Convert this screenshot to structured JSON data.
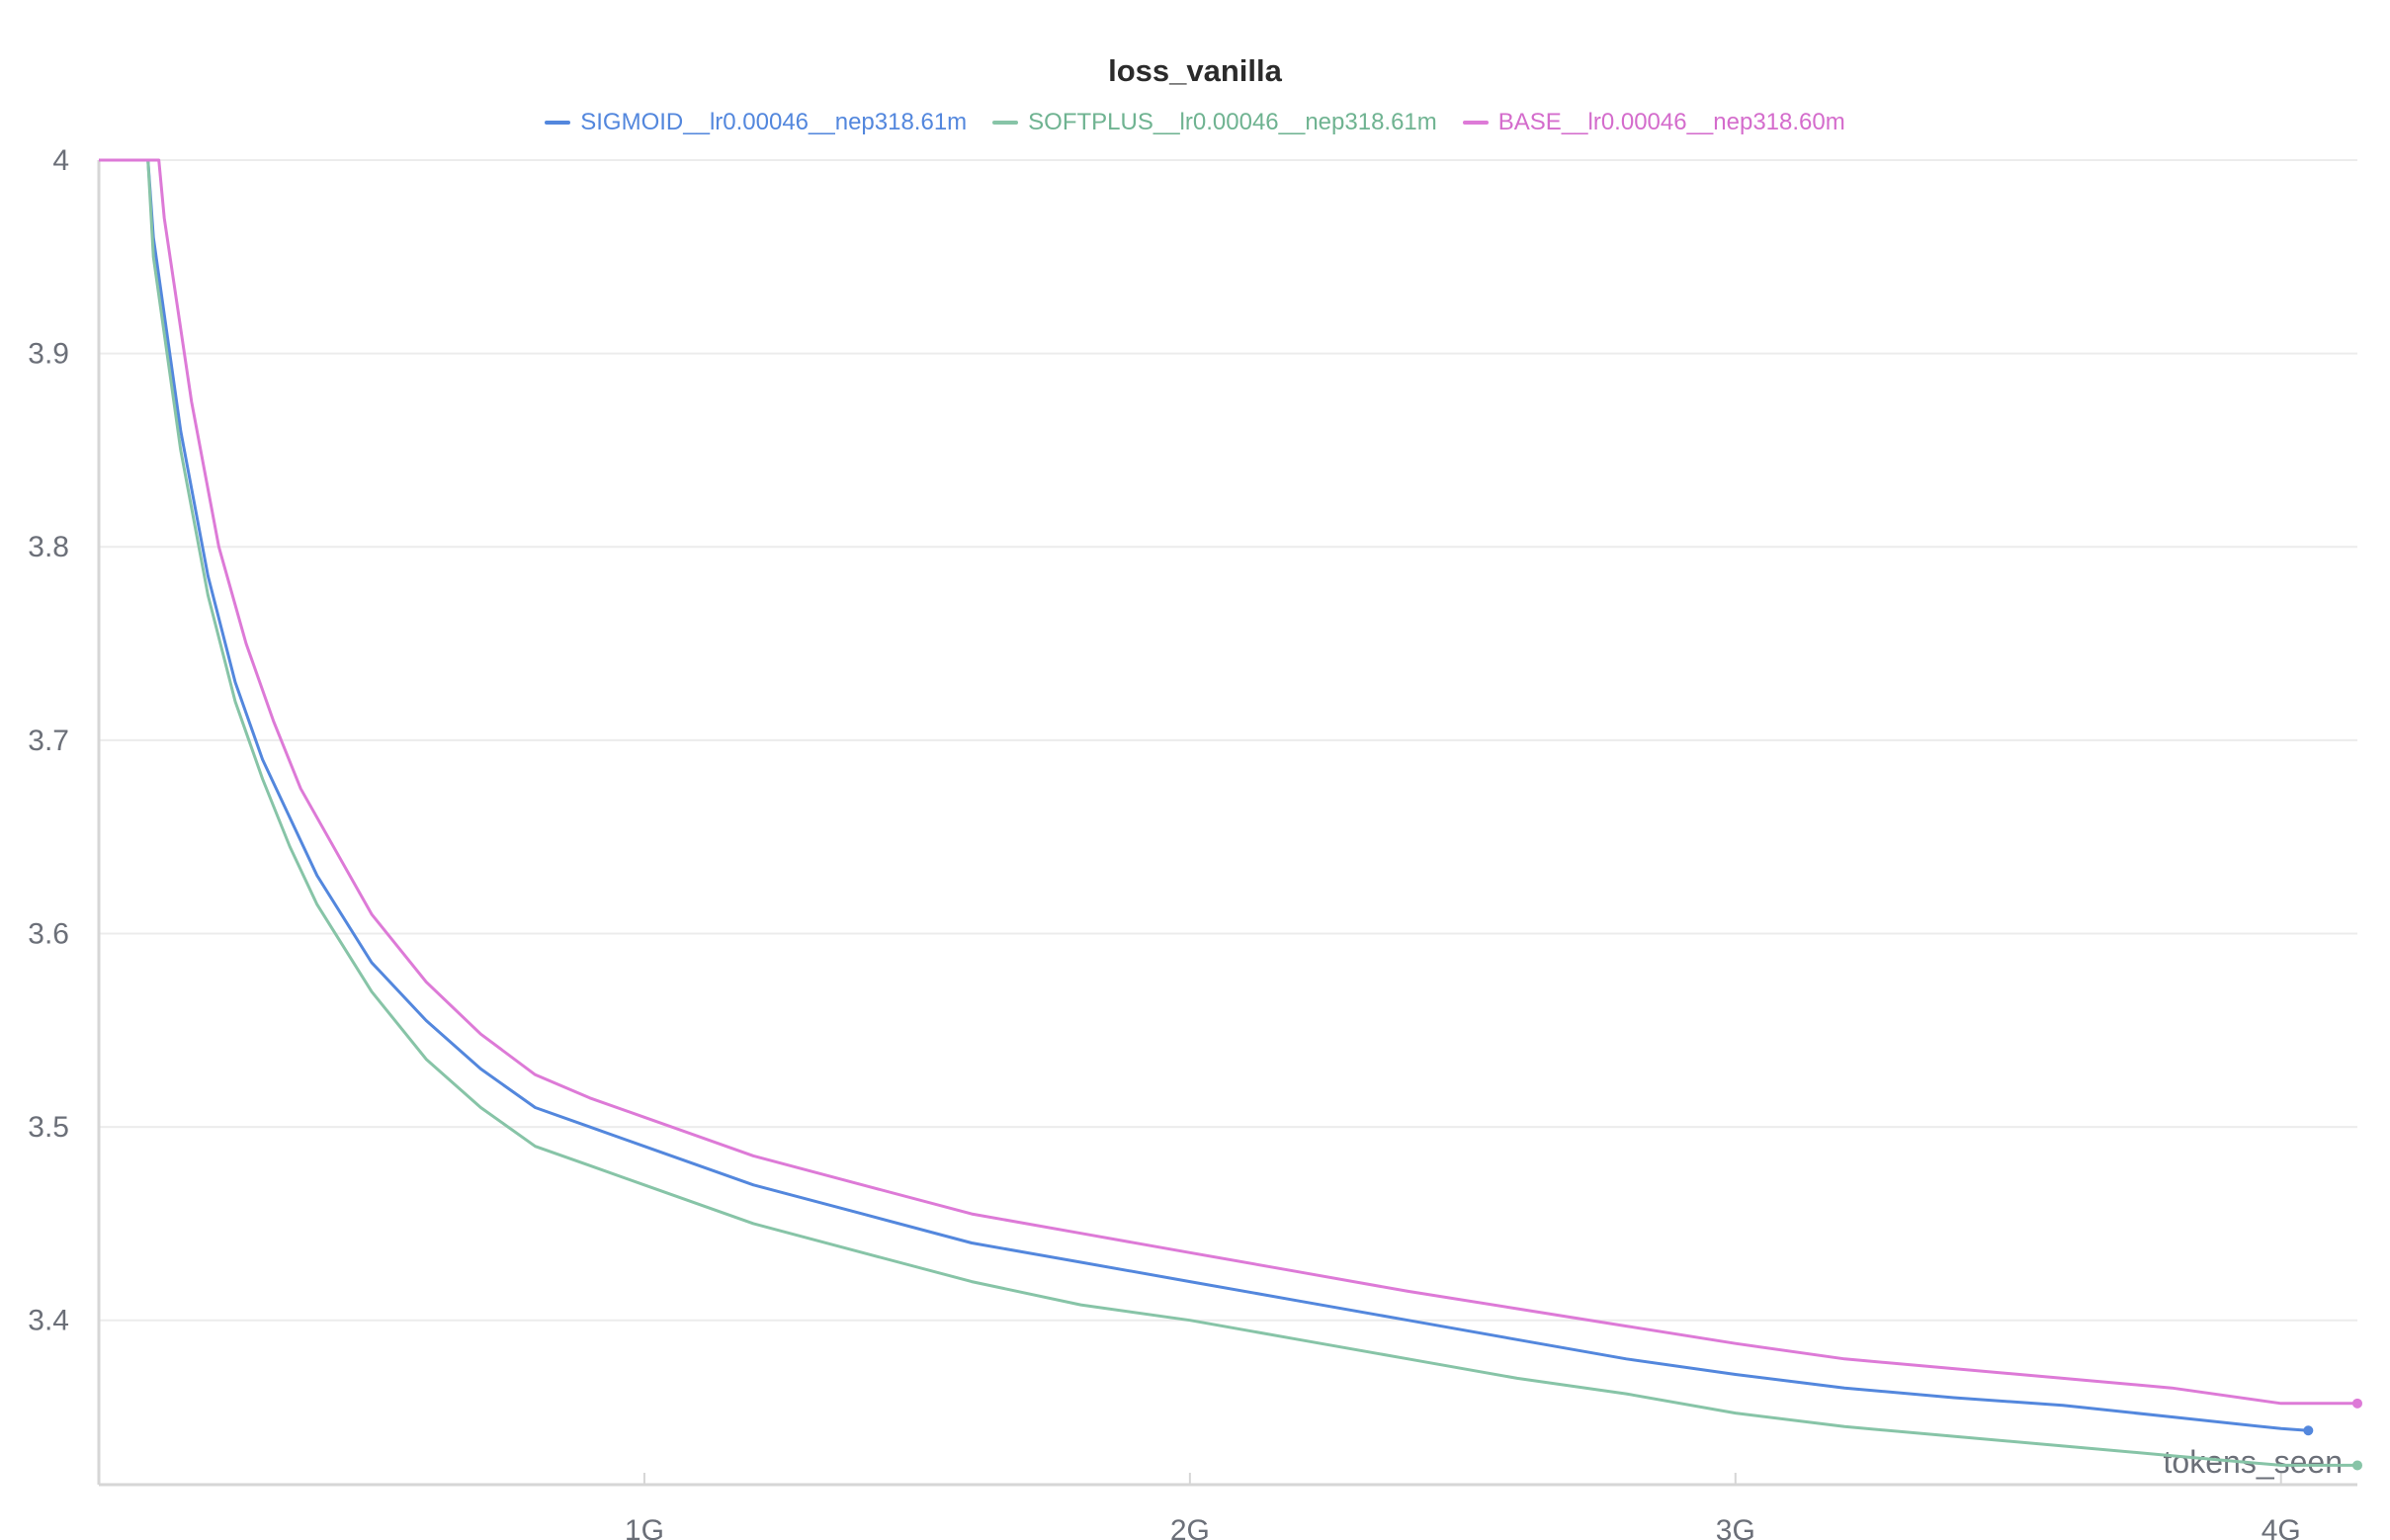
{
  "chart_data": {
    "type": "line",
    "title": "loss_vanilla",
    "xlabel": "tokens_seen",
    "ylabel": "",
    "xlim": [
      0,
      4.14
    ],
    "ylim": [
      3.315,
      4.0
    ],
    "x_unit": "G",
    "x_ticks": [
      1,
      2,
      3,
      4
    ],
    "x_tick_labels": [
      "1G",
      "2G",
      "3G",
      "4G"
    ],
    "y_ticks": [
      3.4,
      3.5,
      3.6,
      3.7,
      3.8,
      3.9,
      4.0
    ],
    "y_tick_labels": [
      "3.4",
      "3.5",
      "3.6",
      "3.7",
      "3.8",
      "3.9",
      "4"
    ],
    "grid": true,
    "legend_position": "top-center",
    "series": [
      {
        "name": "SIGMOID__lr0.00046__nep318.61m",
        "color": "#5387dd",
        "x": [
          0.0,
          0.09,
          0.1,
          0.15,
          0.2,
          0.25,
          0.3,
          0.35,
          0.4,
          0.5,
          0.6,
          0.7,
          0.8,
          0.9,
          1.0,
          1.2,
          1.4,
          1.6,
          1.8,
          2.0,
          2.2,
          2.4,
          2.6,
          2.8,
          3.0,
          3.2,
          3.4,
          3.6,
          3.8,
          4.0,
          4.05
        ],
        "y": [
          4.0,
          4.0,
          3.96,
          3.86,
          3.785,
          3.73,
          3.69,
          3.66,
          3.63,
          3.585,
          3.555,
          3.53,
          3.51,
          3.5,
          3.49,
          3.47,
          3.455,
          3.44,
          3.43,
          3.42,
          3.41,
          3.4,
          3.39,
          3.38,
          3.372,
          3.365,
          3.36,
          3.356,
          3.35,
          3.344,
          3.343
        ]
      },
      {
        "name": "SOFTPLUS__lr0.00046__nep318.61m",
        "color": "#87c4a7",
        "x": [
          0.0,
          0.09,
          0.1,
          0.15,
          0.2,
          0.25,
          0.3,
          0.35,
          0.4,
          0.5,
          0.6,
          0.7,
          0.8,
          0.9,
          1.0,
          1.2,
          1.4,
          1.6,
          1.8,
          2.0,
          2.2,
          2.4,
          2.6,
          2.8,
          3.0,
          3.2,
          3.4,
          3.6,
          3.8,
          4.0,
          4.14
        ],
        "y": [
          4.0,
          4.0,
          3.95,
          3.85,
          3.775,
          3.72,
          3.68,
          3.645,
          3.615,
          3.57,
          3.535,
          3.51,
          3.49,
          3.48,
          3.47,
          3.45,
          3.435,
          3.42,
          3.408,
          3.4,
          3.39,
          3.38,
          3.37,
          3.362,
          3.352,
          3.345,
          3.34,
          3.335,
          3.33,
          3.325,
          3.325
        ]
      },
      {
        "name": "BASE__lr0.00046__nep318.60m",
        "color": "#dd7ad7",
        "x": [
          0.0,
          0.11,
          0.12,
          0.17,
          0.22,
          0.27,
          0.32,
          0.37,
          0.42,
          0.5,
          0.6,
          0.7,
          0.8,
          0.9,
          1.0,
          1.2,
          1.4,
          1.6,
          1.8,
          2.0,
          2.2,
          2.4,
          2.6,
          2.8,
          3.0,
          3.2,
          3.4,
          3.6,
          3.8,
          4.0,
          4.14
        ],
        "y": [
          4.0,
          4.0,
          3.97,
          3.875,
          3.8,
          3.75,
          3.71,
          3.675,
          3.65,
          3.61,
          3.575,
          3.548,
          3.527,
          3.515,
          3.505,
          3.485,
          3.47,
          3.455,
          3.445,
          3.435,
          3.425,
          3.415,
          3.406,
          3.397,
          3.388,
          3.38,
          3.375,
          3.37,
          3.365,
          3.357,
          3.357
        ]
      }
    ]
  }
}
